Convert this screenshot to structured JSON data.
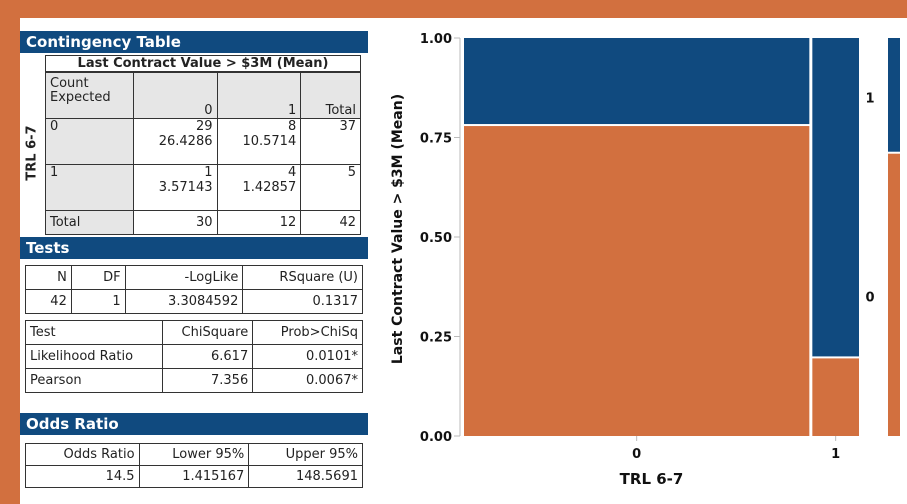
{
  "contingency": {
    "title": "Contingency Table",
    "col_header": "Last Contract Value > $3M (Mean)",
    "row_header": "TRL 6-7",
    "corner_line1": "Count",
    "corner_line2": "Expected",
    "col_labels": [
      "0",
      "1",
      "Total"
    ],
    "rows": [
      {
        "label": "0",
        "c0": "29",
        "e0": "26.4286",
        "c1": "8",
        "e1": "10.5714",
        "total": "37"
      },
      {
        "label": "1",
        "c0": "1",
        "e0": "3.57143",
        "c1": "4",
        "e1": "1.42857",
        "total": "5"
      }
    ],
    "total_row": {
      "label": "Total",
      "c0": "30",
      "c1": "12",
      "total": "42"
    }
  },
  "tests": {
    "title": "Tests",
    "h_n": "N",
    "h_df": "DF",
    "h_loglike": "-LogLike",
    "h_rsq": "RSquare (U)",
    "n": "42",
    "df": "1",
    "loglike": "3.3084592",
    "rsq": "0.1317",
    "h_test": "Test",
    "h_chisq": "ChiSquare",
    "h_prob": "Prob>ChiSq",
    "rows": [
      {
        "name": "Likelihood Ratio",
        "chisq": "6.617",
        "prob": "0.0101*"
      },
      {
        "name": "Pearson",
        "chisq": "7.356",
        "prob": "0.0067*"
      }
    ]
  },
  "odds": {
    "title": "Odds Ratio",
    "h_or": "Odds Ratio",
    "h_lower": "Lower 95%",
    "h_upper": "Upper 95%",
    "or": "14.5",
    "lower": "1.415167",
    "upper": "148.5691"
  },
  "chart_data": {
    "type": "mosaic",
    "xlabel": "TRL 6-7",
    "ylabel": "Last Contract Value > $3M (Mean)",
    "x_categories": [
      "0",
      "1"
    ],
    "x_widths": [
      37,
      5
    ],
    "y_categories": [
      "0",
      "1"
    ],
    "y_tick_labels": [
      "0.00",
      "0.25",
      "0.50",
      "0.75",
      "1.00"
    ],
    "ylim": [
      0,
      1
    ],
    "proportion_one": [
      0.2162,
      0.8
    ],
    "overall_proportion_one": 0.2857,
    "legend_labels": [
      "1",
      "0"
    ],
    "colors": {
      "level_0": "#d2703f",
      "level_1": "#104a7f"
    }
  }
}
